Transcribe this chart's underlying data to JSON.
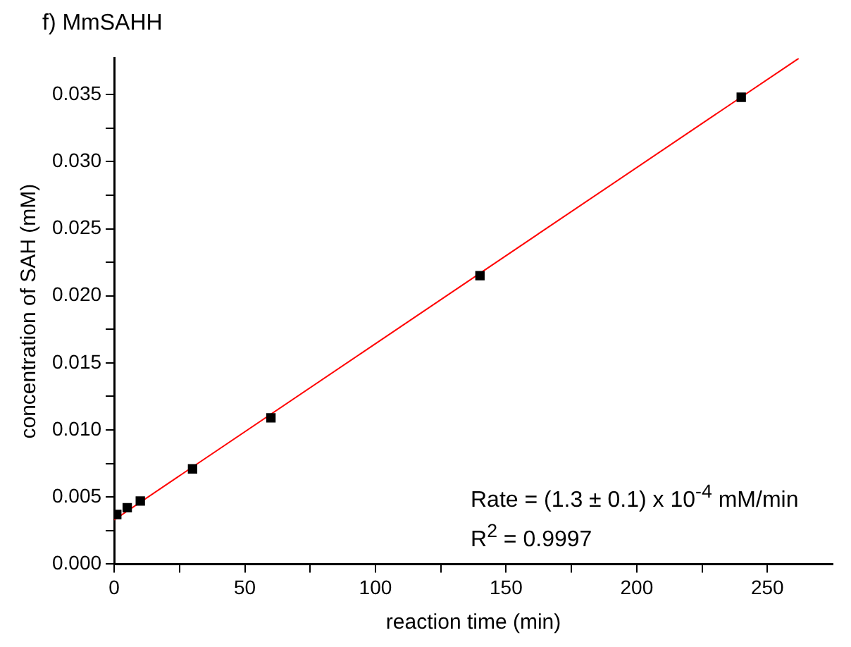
{
  "chart_data": {
    "type": "scatter",
    "title": "f) MmSAHH",
    "xlabel": "reaction time (min)",
    "ylabel": "concentration of SAH (mM)",
    "x": [
      1,
      5,
      10,
      30,
      60,
      140,
      240
    ],
    "series": [
      {
        "type": "scatter",
        "color": "#000000",
        "marker": "square",
        "values": [
          0.0037,
          0.0042,
          0.0047,
          0.0071,
          0.0109,
          0.0215,
          0.0348
        ]
      },
      {
        "type": "line",
        "color": "#ff0000",
        "marker": "none",
        "x": [
          0,
          262
        ],
        "values": [
          0.0033,
          0.0377
        ]
      }
    ],
    "xlim": [
      0,
      275
    ],
    "xticks": [
      0,
      {
        "value": 25,
        "label": null
      },
      50,
      {
        "value": 75,
        "label": null
      },
      100,
      {
        "value": 125,
        "label": null
      },
      150,
      {
        "value": 175,
        "label": null
      },
      200,
      {
        "value": 225,
        "label": null
      },
      250
    ],
    "ylim": [
      0,
      0.0377
    ],
    "yticks": [
      "0.000",
      {
        "value": 0.0025,
        "label": null
      },
      {
        "value": 0.005,
        "label": "0.005"
      },
      {
        "value": 0.0075,
        "label": null
      },
      {
        "value": 0.01,
        "label": "0.010"
      },
      {
        "value": 0.0125,
        "label": null
      },
      {
        "value": 0.015,
        "label": "0.015"
      },
      {
        "value": 0.0175,
        "label": null
      },
      {
        "value": 0.02,
        "label": "0.020"
      },
      {
        "value": 0.0225,
        "label": null
      },
      {
        "value": 0.025,
        "label": "0.025"
      },
      {
        "value": 0.0275,
        "label": null
      },
      {
        "value": 0.03,
        "label": "0.030"
      },
      {
        "value": 0.0325,
        "label": null
      },
      {
        "value": 0.035,
        "label": "0.035"
      }
    ],
    "grid": false,
    "legend": false,
    "annotations": [
      "Rate = (1.3 ± 0.1) x 10$^{-4}$ mM/min",
      "R$^{2}$ = 0.9997"
    ]
  }
}
